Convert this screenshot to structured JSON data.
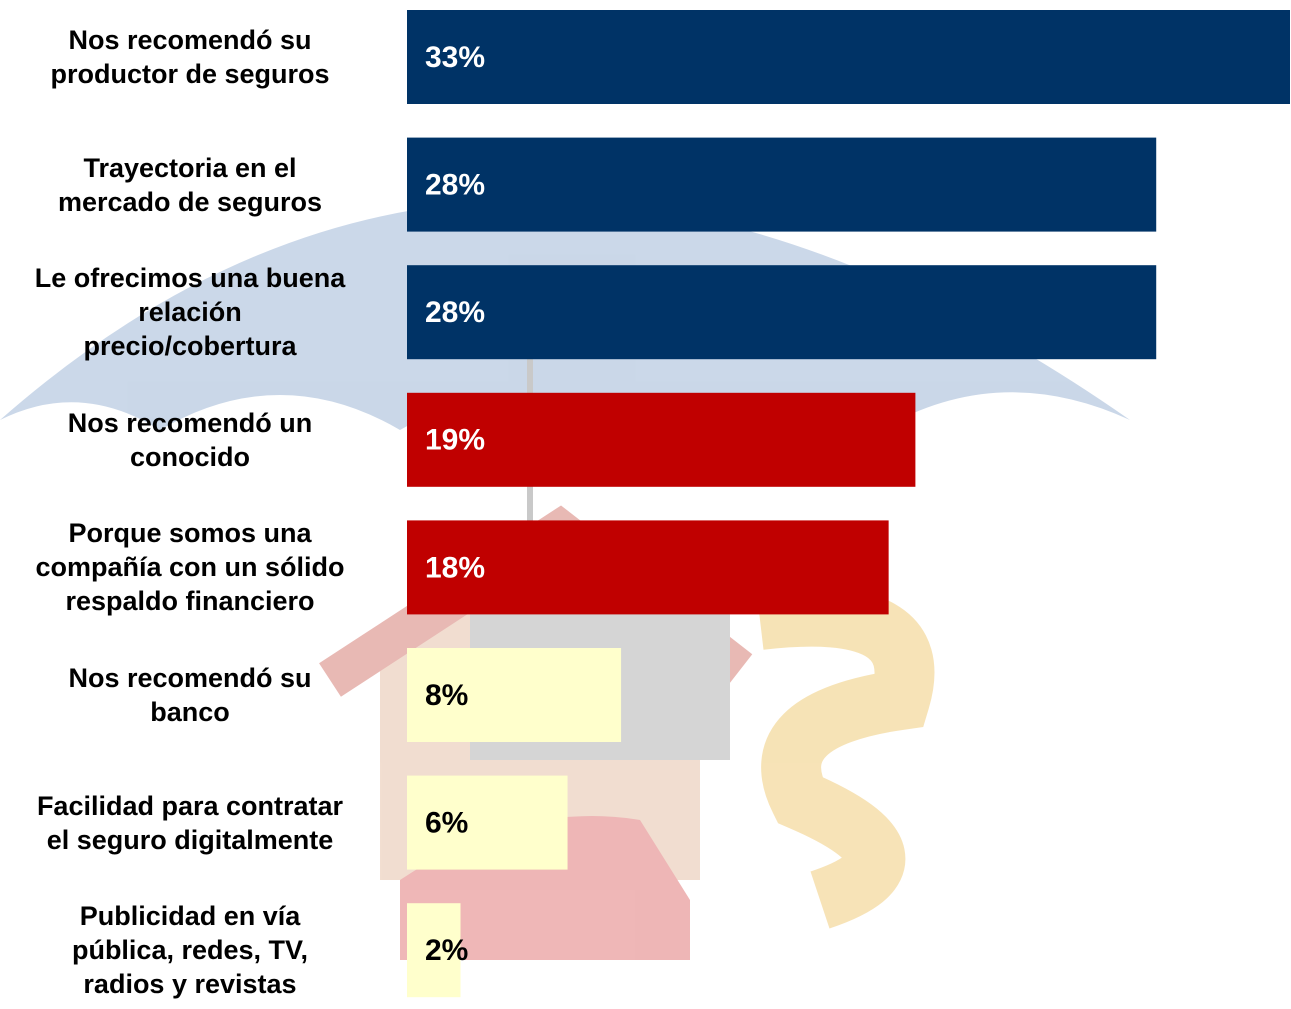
{
  "chart_data": {
    "type": "barh",
    "categories": [
      "Nos recomendó su\nproductor de seguros",
      "Trayectoria en el\nmercado de seguros",
      "Le ofrecimos una buena\nrelación\nprecio/cobertura",
      "Nos recomendó un\nconocido",
      "Porque somos una\ncompañía con un sólido\nrespaldo financiero",
      "Nos recomendó su\nbanco",
      "Facilidad para contratar\nel seguro digitalmente",
      "Publicidad en vía\npública, redes, TV,\nradios y revistas"
    ],
    "values": [
      33,
      28,
      28,
      19,
      18,
      8,
      6,
      2
    ],
    "value_labels": [
      "33%",
      "28%",
      "28%",
      "19%",
      "18%",
      "8%",
      "6%",
      "2%"
    ],
    "colors": [
      "#003366",
      "#003366",
      "#003366",
      "#c00000",
      "#c00000",
      "#ffffcc",
      "#ffffcc",
      "#ffffcc"
    ]
  }
}
